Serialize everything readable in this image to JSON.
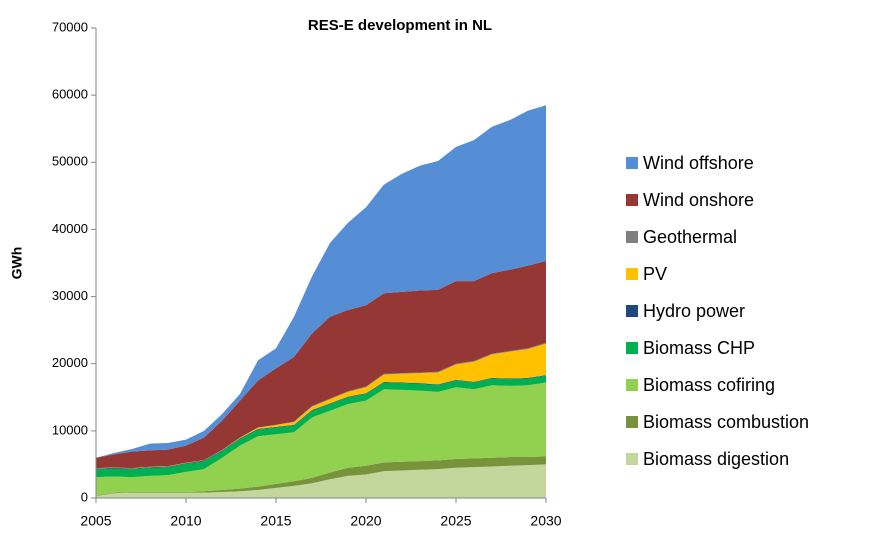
{
  "chart_data": {
    "type": "stacked_area",
    "title": "RES-E development in NL",
    "y_label": "GWh",
    "x": [
      2005,
      2006,
      2007,
      2008,
      2009,
      2010,
      2011,
      2012,
      2013,
      2014,
      2015,
      2016,
      2017,
      2018,
      2019,
      2020,
      2021,
      2022,
      2023,
      2024,
      2025,
      2026,
      2027,
      2028,
      2029,
      2030
    ],
    "xlim": [
      2005,
      2030
    ],
    "xticks": [
      2005,
      2010,
      2015,
      2020,
      2025,
      2030
    ],
    "ylim": [
      0,
      70000
    ],
    "yticks": [
      0,
      10000,
      20000,
      30000,
      40000,
      50000,
      60000,
      70000
    ],
    "grid": false,
    "legend": "right",
    "series": [
      {
        "name": "Wind offshore",
        "color": "#558ed5",
        "values": [
          0,
          200,
          400,
          1000,
          1000,
          900,
          1000,
          1000,
          1000,
          3000,
          3000,
          6000,
          8500,
          11000,
          13000,
          14600,
          16200,
          17600,
          18600,
          19200,
          20000,
          21000,
          21800,
          22300,
          23100,
          23200
        ]
      },
      {
        "name": "Wind onshore",
        "color": "#953735",
        "values": [
          1550,
          1950,
          2450,
          2450,
          2450,
          2550,
          3350,
          4350,
          5500,
          7000,
          8400,
          9600,
          10800,
          12200,
          12100,
          12100,
          12000,
          12100,
          12200,
          12200,
          12300,
          11900,
          12000,
          12100,
          12300,
          12200
        ]
      },
      {
        "name": "Geothermal",
        "color": "#7f7f7f",
        "values": [
          0,
          0,
          0,
          0,
          0,
          0,
          0,
          0,
          0,
          0,
          0,
          100,
          100,
          100,
          100,
          100,
          100,
          100,
          100,
          100,
          100,
          100,
          100,
          100,
          100,
          100
        ]
      },
      {
        "name": "PV",
        "color": "#ffc000",
        "values": [
          50,
          50,
          50,
          50,
          50,
          50,
          50,
          50,
          100,
          200,
          300,
          400,
          500,
          600,
          700,
          900,
          1100,
          1300,
          1500,
          1800,
          2300,
          3000,
          3500,
          4000,
          4300,
          4700
        ]
      },
      {
        "name": "Hydro power",
        "color": "#1f497d",
        "values": [
          100,
          100,
          100,
          100,
          100,
          100,
          100,
          100,
          100,
          100,
          100,
          100,
          100,
          100,
          100,
          100,
          100,
          100,
          100,
          100,
          100,
          100,
          100,
          100,
          100,
          100
        ]
      },
      {
        "name": "Biomass CHP",
        "color": "#00b050",
        "values": [
          1200,
          1200,
          1200,
          1200,
          1200,
          1200,
          1200,
          1000,
          1000,
          1000,
          1000,
          1000,
          1000,
          1000,
          1000,
          1000,
          1000,
          1000,
          1000,
          1000,
          1000,
          1000,
          1000,
          1000,
          1000,
          1000
        ]
      },
      {
        "name": "Biomass cofiring",
        "color": "#92d050",
        "values": [
          2700,
          2400,
          2200,
          2400,
          2500,
          3000,
          3300,
          4800,
          6400,
          7500,
          7400,
          7300,
          9000,
          9200,
          9500,
          9700,
          10900,
          10700,
          10500,
          10200,
          10700,
          10300,
          10800,
          10600,
          10700,
          11000
        ]
      },
      {
        "name": "Biomass combustion",
        "color": "#77933c",
        "values": [
          100,
          100,
          100,
          100,
          100,
          100,
          200,
          300,
          400,
          500,
          600,
          700,
          800,
          1000,
          1200,
          1300,
          1300,
          1300,
          1300,
          1300,
          1300,
          1300,
          1300,
          1300,
          1200,
          1200
        ]
      },
      {
        "name": "Biomass digestion",
        "color": "#c3d69b",
        "values": [
          300,
          700,
          800,
          800,
          800,
          800,
          800,
          900,
          1000,
          1200,
          1500,
          1800,
          2200,
          2800,
          3300,
          3500,
          4000,
          4100,
          4200,
          4300,
          4500,
          4600,
          4700,
          4800,
          4900,
          5000
        ]
      }
    ]
  }
}
